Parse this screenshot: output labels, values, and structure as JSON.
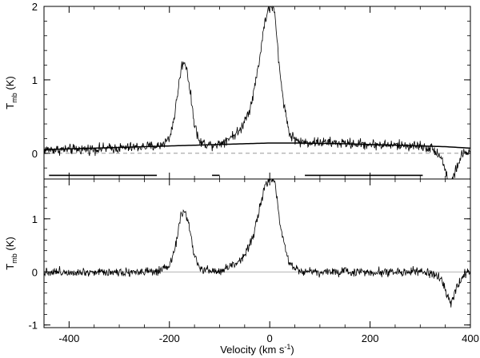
{
  "chart_data": [
    {
      "type": "line",
      "panel": "top",
      "ylabel_main": "T",
      "ylabel_sub": "mb",
      "ylabel_unit": " (K)",
      "xlim": [
        -450,
        400
      ],
      "ylim": [
        -0.35,
        2.0
      ],
      "yticks": [
        0,
        1,
        2
      ],
      "ytick_labels": [
        "0",
        "1",
        "2"
      ],
      "zero_line": "dashed",
      "series": [
        {
          "style": "noisy-spectrum",
          "x": [
            -450,
            -400,
            -300,
            -250,
            -220,
            -200,
            -190,
            -180,
            -175,
            -170,
            -165,
            -160,
            -150,
            -140,
            -120,
            -100,
            -60,
            -40,
            -30,
            -20,
            -10,
            0,
            5,
            10,
            20,
            30,
            40,
            60,
            100,
            200,
            300,
            330,
            345,
            355,
            360,
            365,
            375,
            385,
            400
          ],
          "y": [
            0.05,
            0.05,
            0.07,
            0.09,
            0.1,
            0.2,
            0.5,
            1.0,
            1.2,
            1.25,
            1.15,
            0.9,
            0.4,
            0.15,
            0.12,
            0.13,
            0.3,
            0.6,
            0.9,
            1.3,
            1.8,
            2.0,
            2.0,
            1.9,
            1.1,
            0.6,
            0.25,
            0.15,
            0.15,
            0.12,
            0.1,
            0.05,
            -0.1,
            -0.35,
            -0.42,
            -0.35,
            -0.15,
            0.0,
            0.02
          ]
        },
        {
          "style": "baseline-fit",
          "x": [
            -450,
            -350,
            -250,
            -150,
            -50,
            0,
            50,
            150,
            250,
            350,
            400
          ],
          "y": [
            0.05,
            0.07,
            0.09,
            0.11,
            0.13,
            0.14,
            0.14,
            0.13,
            0.11,
            0.09,
            0.07
          ]
        }
      ],
      "baseline_windows": [
        [
          -440,
          -225
        ],
        [
          -115,
          -100
        ],
        [
          70,
          305
        ]
      ]
    },
    {
      "type": "line",
      "panel": "bottom",
      "ylabel_main": "T",
      "ylabel_sub": "mb",
      "ylabel_unit": " (K)",
      "xlabel_main": "Velocity (km s",
      "xlabel_sup": "-1",
      "xlabel_end": ")",
      "xlim": [
        -450,
        400
      ],
      "ylim": [
        -1.05,
        1.75
      ],
      "yticks": [
        -1,
        0,
        1
      ],
      "ytick_labels": [
        "-1",
        "0",
        "1"
      ],
      "xticks": [
        -400,
        -200,
        0,
        200,
        400
      ],
      "xtick_labels": [
        "-400",
        "-200",
        "0",
        "200",
        "400"
      ],
      "zero_line": "solid-gray",
      "series": [
        {
          "style": "noisy-spectrum",
          "x": [
            -450,
            -300,
            -220,
            -200,
            -190,
            -180,
            -175,
            -170,
            -165,
            -160,
            -150,
            -140,
            -100,
            -60,
            -40,
            -30,
            -20,
            -10,
            0,
            5,
            10,
            20,
            30,
            40,
            60,
            100,
            300,
            330,
            345,
            355,
            360,
            365,
            375,
            385,
            400
          ],
          "y": [
            0.0,
            0.0,
            0.0,
            0.1,
            0.4,
            0.9,
            1.1,
            1.15,
            1.05,
            0.8,
            0.3,
            0.05,
            0.0,
            0.2,
            0.5,
            0.8,
            1.2,
            1.6,
            1.75,
            1.75,
            1.7,
            0.95,
            0.5,
            0.15,
            0.02,
            0.0,
            0.0,
            -0.05,
            -0.2,
            -0.5,
            -0.6,
            -0.5,
            -0.25,
            -0.05,
            0.0
          ]
        }
      ]
    }
  ]
}
